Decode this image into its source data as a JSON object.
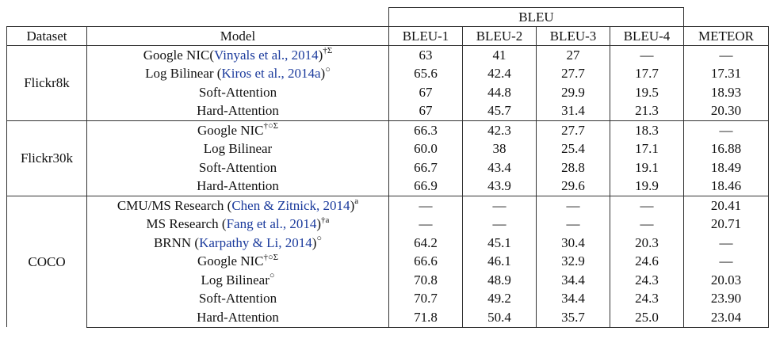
{
  "table": {
    "super_header": "BLEU",
    "columns": [
      "Dataset",
      "Model",
      "BLEU-1",
      "BLEU-2",
      "BLEU-3",
      "BLEU-4",
      "METEOR"
    ],
    "groups": [
      {
        "dataset": "Flickr8k",
        "rows": [
          {
            "model": "Google NIC(",
            "cite": "Vinyals et al., 2014",
            "model_tail": ")",
            "sup": "†Σ",
            "values": [
              "63",
              "41",
              "27",
              "—",
              "—"
            ],
            "bold": [
              false,
              false,
              false,
              false,
              false
            ]
          },
          {
            "model": "Log Bilinear (",
            "cite": "Kiros et al., 2014a",
            "model_tail": ")",
            "sup": "○",
            "values": [
              "65.6",
              "42.4",
              "27.7",
              "17.7",
              "17.31"
            ],
            "bold": [
              false,
              false,
              false,
              false,
              false
            ]
          },
          {
            "model": "Soft-Attention",
            "cite": "",
            "model_tail": "",
            "sup": "",
            "values": [
              "67",
              "44.8",
              "29.9",
              "19.5",
              "18.93"
            ],
            "bold": [
              true,
              false,
              false,
              false,
              false
            ]
          },
          {
            "model": "Hard-Attention",
            "cite": "",
            "model_tail": "",
            "sup": "",
            "values": [
              "67",
              "45.7",
              "31.4",
              "21.3",
              "20.30"
            ],
            "bold": [
              true,
              true,
              true,
              true,
              true
            ]
          }
        ]
      },
      {
        "dataset": "Flickr30k",
        "rows": [
          {
            "model": "Google NIC",
            "cite": "",
            "model_tail": "",
            "sup": "†○Σ",
            "values": [
              "66.3",
              "42.3",
              "27.7",
              "18.3",
              "—"
            ],
            "bold": [
              false,
              false,
              false,
              false,
              false
            ]
          },
          {
            "model": "Log Bilinear",
            "cite": "",
            "model_tail": "",
            "sup": "",
            "values": [
              "60.0",
              "38",
              "25.4",
              "17.1",
              "16.88"
            ],
            "bold": [
              false,
              false,
              false,
              false,
              false
            ]
          },
          {
            "model": "Soft-Attention",
            "cite": "",
            "model_tail": "",
            "sup": "",
            "values": [
              "66.7",
              "43.4",
              "28.8",
              "19.1",
              "18.49"
            ],
            "bold": [
              false,
              false,
              false,
              false,
              true
            ]
          },
          {
            "model": "Hard-Attention",
            "cite": "",
            "model_tail": "",
            "sup": "",
            "values": [
              "66.9",
              "43.9",
              "29.6",
              "19.9",
              "18.46"
            ],
            "bold": [
              true,
              true,
              true,
              true,
              false
            ]
          }
        ]
      },
      {
        "dataset": "COCO",
        "rows": [
          {
            "model": "CMU/MS Research (",
            "cite": "Chen & Zitnick, 2014",
            "model_tail": ")",
            "sup": "a",
            "values": [
              "—",
              "—",
              "—",
              "—",
              "20.41"
            ],
            "bold": [
              false,
              false,
              false,
              false,
              false
            ]
          },
          {
            "model": "MS Research (",
            "cite": "Fang et al., 2014",
            "model_tail": ")",
            "sup": "†a",
            "values": [
              "—",
              "—",
              "—",
              "—",
              "20.71"
            ],
            "bold": [
              false,
              false,
              false,
              false,
              false
            ]
          },
          {
            "model": "BRNN (",
            "cite": "Karpathy & Li, 2014",
            "model_tail": ")",
            "sup": "○",
            "values": [
              "64.2",
              "45.1",
              "30.4",
              "20.3",
              "—"
            ],
            "bold": [
              false,
              false,
              false,
              false,
              false
            ]
          },
          {
            "model": "Google NIC",
            "cite": "",
            "model_tail": "",
            "sup": "†○Σ",
            "values": [
              "66.6",
              "46.1",
              "32.9",
              "24.6",
              "—"
            ],
            "bold": [
              false,
              false,
              false,
              false,
              false
            ]
          },
          {
            "model": "Log Bilinear",
            "cite": "",
            "model_tail": "",
            "sup": "○",
            "values": [
              "70.8",
              "48.9",
              "34.4",
              "24.3",
              "20.03"
            ],
            "bold": [
              false,
              false,
              false,
              false,
              false
            ]
          },
          {
            "model": "Soft-Attention",
            "cite": "",
            "model_tail": "",
            "sup": "",
            "values": [
              "70.7",
              "49.2",
              "34.4",
              "24.3",
              "23.90"
            ],
            "bold": [
              false,
              false,
              false,
              false,
              true
            ]
          },
          {
            "model": "Hard-Attention",
            "cite": "",
            "model_tail": "",
            "sup": "",
            "values": [
              "71.8",
              "50.4",
              "35.7",
              "25.0",
              "23.04"
            ],
            "bold": [
              true,
              true,
              true,
              true,
              false
            ]
          }
        ]
      }
    ]
  }
}
